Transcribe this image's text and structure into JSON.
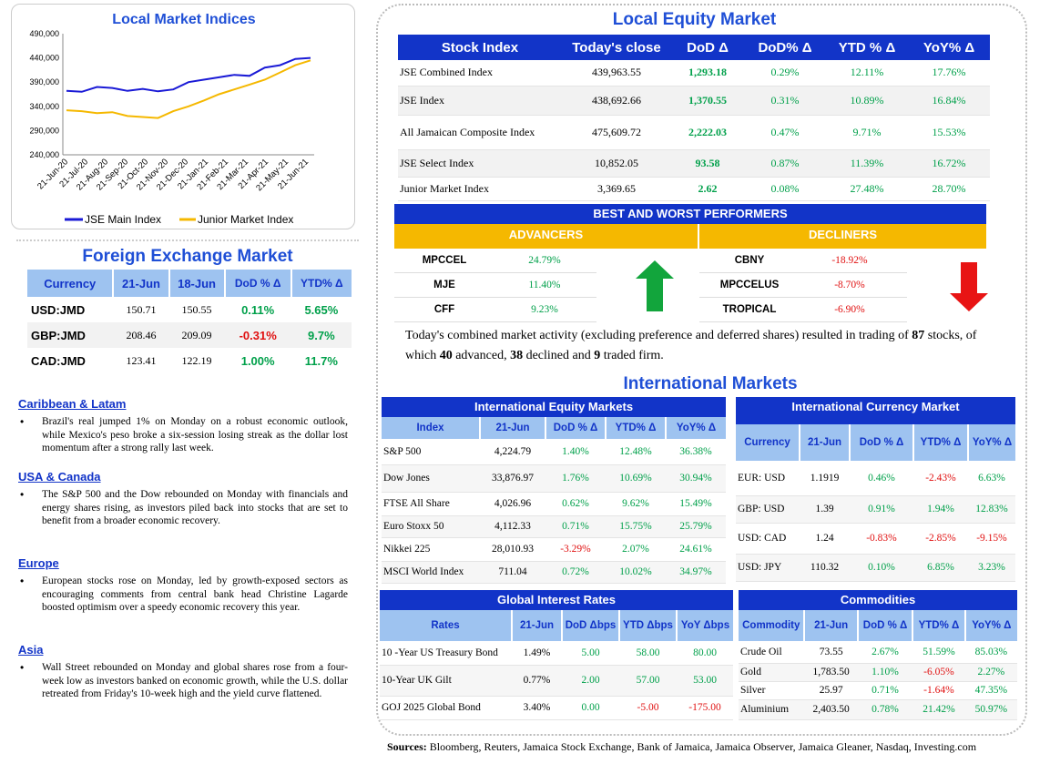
{
  "chart": {
    "title": "Local Market Indices",
    "legend": [
      "JSE Main Index",
      "Junior Market Index"
    ]
  },
  "chart_data": {
    "type": "line",
    "title": "Local Market Indices",
    "x_ticks": [
      "21-Jun-20",
      "21-Jul-20",
      "21-Aug-20",
      "21-Sep-20",
      "21-Oct-20",
      "21-Nov-20",
      "21-Dec-20",
      "21-Jan-21",
      "21-Feb-21",
      "21-Mar-21",
      "21-Apr-21",
      "21-May-21",
      "21-Jun-21"
    ],
    "y_ticks": [
      "490,000",
      "440,000",
      "390,000",
      "340,000",
      "290,000",
      "240,000"
    ],
    "ylim": [
      240000,
      490000
    ],
    "series": [
      {
        "name": "JSE Main Index",
        "color": "#1a1ad6",
        "values": [
          372000,
          370000,
          380000,
          378000,
          372000,
          376000,
          371000,
          375000,
          390000,
          395000,
          400000,
          405000,
          403000,
          420000,
          425000,
          438000,
          440000
        ]
      },
      {
        "name": "Junior Market Index",
        "color": "#f5b800",
        "values": [
          332000,
          330000,
          326000,
          328000,
          320000,
          318000,
          316000,
          330000,
          340000,
          352000,
          365000,
          375000,
          385000,
          395000,
          410000,
          425000,
          435000
        ]
      }
    ]
  },
  "fx": {
    "title": "Foreign Exchange Market",
    "headers": [
      "Currency",
      "21-Jun",
      "18-Jun",
      "DoD % Δ",
      "YTD% Δ"
    ],
    "rows": [
      [
        "USD:JMD",
        "150.71",
        "150.55",
        "0.11%",
        "5.65%"
      ],
      [
        "GBP:JMD",
        "208.46",
        "209.09",
        "-0.31%",
        "9.7%"
      ],
      [
        "CAD:JMD",
        "123.41",
        "122.19",
        "1.00%",
        "11.7%"
      ]
    ]
  },
  "news": [
    {
      "heading": "Caribbean & Latam",
      "text": "Brazil's real jumped 1% on Monday on a robust economic outlook, while Mexico's peso broke a six-session losing streak as the dollar lost momentum after a strong rally last week."
    },
    {
      "heading": "USA & Canada",
      "text": "The S&P 500 and the Dow rebounded on Monday with financials and energy shares rising, as investors piled back into stocks that are set to benefit from a broader economic recovery."
    },
    {
      "heading": "Europe",
      "text": "European stocks rose on Monday, led by growth-exposed sectors as encouraging comments from central bank head Christine Lagarde boosted optimism over a speedy economic recovery this year."
    },
    {
      "heading": "Asia",
      "text": "Wall Street rebounded on Monday and global shares rose from a four-week low as investors banked on economic growth, while the U.S. dollar retreated from Friday's 10-week high and the yield curve flattened."
    }
  ],
  "equity": {
    "title": "Local Equity Market",
    "headers": [
      "Stock Index",
      "Today's close",
      "DoD Δ",
      "DoD% Δ",
      "YTD % Δ",
      "YoY% Δ"
    ],
    "rows": [
      [
        "JSE Combined Index",
        "439,963.55",
        "1,293.18",
        "0.29%",
        "12.11%",
        "17.76%"
      ],
      [
        "JSE Index",
        "438,692.66",
        "1,370.55",
        "0.31%",
        "10.89%",
        "16.84%"
      ],
      [
        "All Jamaican Composite Index",
        "475,609.72",
        "2,222.03",
        "0.47%",
        "9.71%",
        "15.53%"
      ],
      [
        "JSE Select Index",
        "10,852.05",
        "93.58",
        "0.87%",
        "11.39%",
        "16.72%"
      ],
      [
        "Junior Market Index",
        "3,369.65",
        "2.62",
        "0.08%",
        "27.48%",
        "28.70%"
      ]
    ]
  },
  "performers": {
    "title": "BEST AND WORST PERFORMERS",
    "advancers_label": "ADVANCERS",
    "decliners_label": "DECLINERS",
    "advancers": [
      [
        "MPCCEL",
        "24.79%"
      ],
      [
        "MJE",
        "11.40%"
      ],
      [
        "CFF",
        "9.23%"
      ]
    ],
    "decliners": [
      [
        "CBNY",
        "-18.92%"
      ],
      [
        "MPCCELUS",
        "-8.70%"
      ],
      [
        "TROPICAL",
        "-6.90%"
      ]
    ]
  },
  "summary": {
    "p1": "Today's combined market activity (excluding preference and deferred shares) resulted in trading of ",
    "n1": "87",
    "p2": " stocks, of which ",
    "n2": "40",
    "p3": " advanced, ",
    "n3": "38",
    "p4": " declined and ",
    "n4": "9",
    "p5": " traded firm."
  },
  "intl_title": "International Markets",
  "intl_equity": {
    "title": "International Equity Markets",
    "headers": [
      "Index",
      "21-Jun",
      "DoD % Δ",
      "YTD% Δ",
      "YoY% Δ"
    ],
    "rows": [
      [
        "S&P 500",
        "4,224.79",
        "1.40%",
        "12.48%",
        "36.38%"
      ],
      [
        "Dow Jones",
        "33,876.97",
        "1.76%",
        "10.69%",
        "30.94%"
      ],
      [
        "FTSE All Share",
        "4,026.96",
        "0.62%",
        "9.62%",
        "15.49%"
      ],
      [
        "Euro Stoxx 50",
        "4,112.33",
        "0.71%",
        "15.75%",
        "25.79%"
      ],
      [
        "Nikkei 225",
        "28,010.93",
        "-3.29%",
        "2.07%",
        "24.61%"
      ],
      [
        "MSCI World Index",
        "711.04",
        "0.72%",
        "10.02%",
        "34.97%"
      ]
    ]
  },
  "intl_currency": {
    "title": "International Currency Market",
    "headers": [
      "Currency",
      "21-Jun",
      "DoD % Δ",
      "YTD% Δ",
      "YoY% Δ"
    ],
    "rows": [
      [
        "EUR: USD",
        "1.1919",
        "0.46%",
        "-2.43%",
        "6.63%"
      ],
      [
        "GBP: USD",
        "1.39",
        "0.91%",
        "1.94%",
        "12.83%"
      ],
      [
        "USD: CAD",
        "1.24",
        "-0.83%",
        "-2.85%",
        "-9.15%"
      ],
      [
        "USD: JPY",
        "110.32",
        "0.10%",
        "6.85%",
        "3.23%"
      ]
    ]
  },
  "rates": {
    "title": "Global Interest Rates",
    "headers": [
      "Rates",
      "21-Jun",
      "DoD Δbps",
      "YTD Δbps",
      "YoY Δbps"
    ],
    "rows": [
      [
        "10 -Year US Treasury Bond",
        "1.49%",
        "5.00",
        "58.00",
        "80.00"
      ],
      [
        "10-Year UK Gilt",
        "0.77%",
        "2.00",
        "57.00",
        "53.00"
      ],
      [
        "GOJ 2025 Global Bond",
        "3.40%",
        "0.00",
        "-5.00",
        "-175.00"
      ]
    ]
  },
  "commodities": {
    "title": "Commodities",
    "headers": [
      "Commodity",
      "21-Jun",
      "DoD % Δ",
      "YTD% Δ",
      "YoY% Δ"
    ],
    "rows": [
      [
        "Crude Oil",
        "73.55",
        "2.67%",
        "51.59%",
        "85.03%"
      ],
      [
        "Gold",
        "1,783.50",
        "1.10%",
        "-6.05%",
        "2.27%"
      ],
      [
        "Silver",
        "25.97",
        "0.71%",
        "-1.64%",
        "47.35%"
      ],
      [
        "Aluminium",
        "2,403.50",
        "0.78%",
        "21.42%",
        "50.97%"
      ]
    ]
  },
  "sources": {
    "label": "Sources:",
    "text": " Bloomberg, Reuters, Jamaica Stock Exchange, Bank of Jamaica, Jamaica Observer, Jamaica Gleaner, Nasdaq, Investing.com"
  },
  "colors": {
    "header_blue": "#1234c8",
    "header_light": "#9ec3f0",
    "gold": "#f5b800",
    "positive": "#00a04a",
    "negative": "#e01010"
  }
}
